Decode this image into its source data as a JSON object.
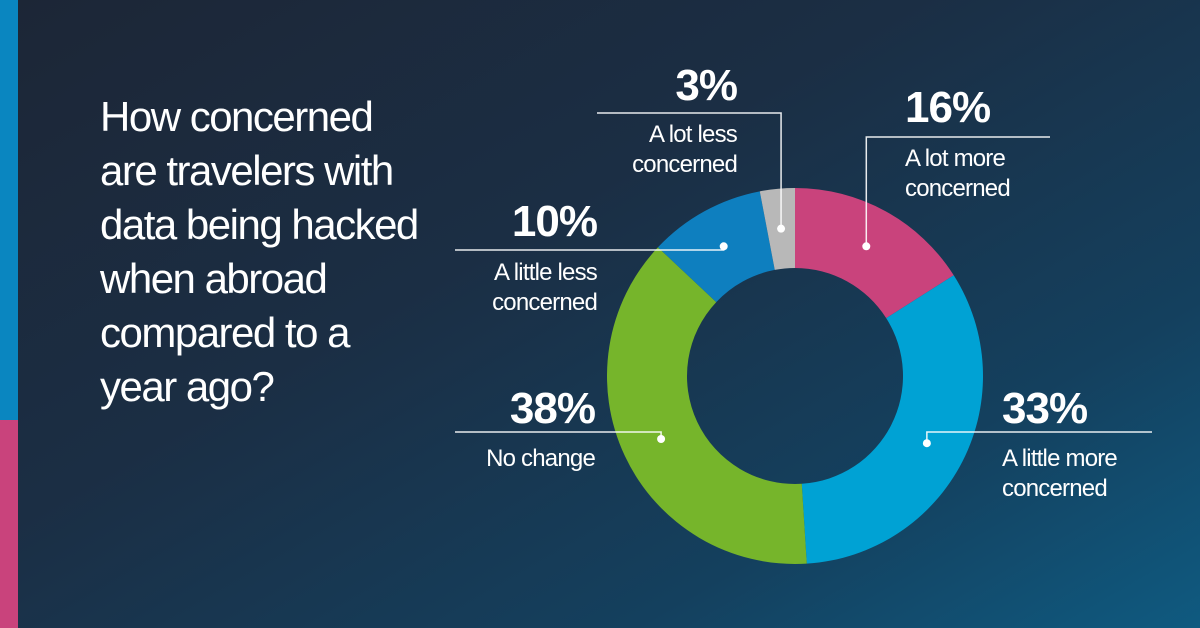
{
  "question": "How concerned are travelers with data being hacked when abroad compared to a year ago?",
  "colors": {
    "accent_blue": "#0a86c0",
    "accent_pink": "#c9437c"
  },
  "chart_data": {
    "type": "pie",
    "donut": true,
    "title": "",
    "categories": [
      "A lot more concerned",
      "A little more concerned",
      "No change",
      "A little less concerned",
      "A lot less concerned"
    ],
    "values": [
      16,
      33,
      38,
      10,
      3
    ],
    "value_labels": [
      "16%",
      "33%",
      "38%",
      "10%",
      "3%"
    ],
    "colors": [
      "#c9437c",
      "#00a2d4",
      "#76b52b",
      "#0e7fbf",
      "#b8b8b8"
    ],
    "start_angle_deg": 0,
    "direction": "clockwise"
  }
}
